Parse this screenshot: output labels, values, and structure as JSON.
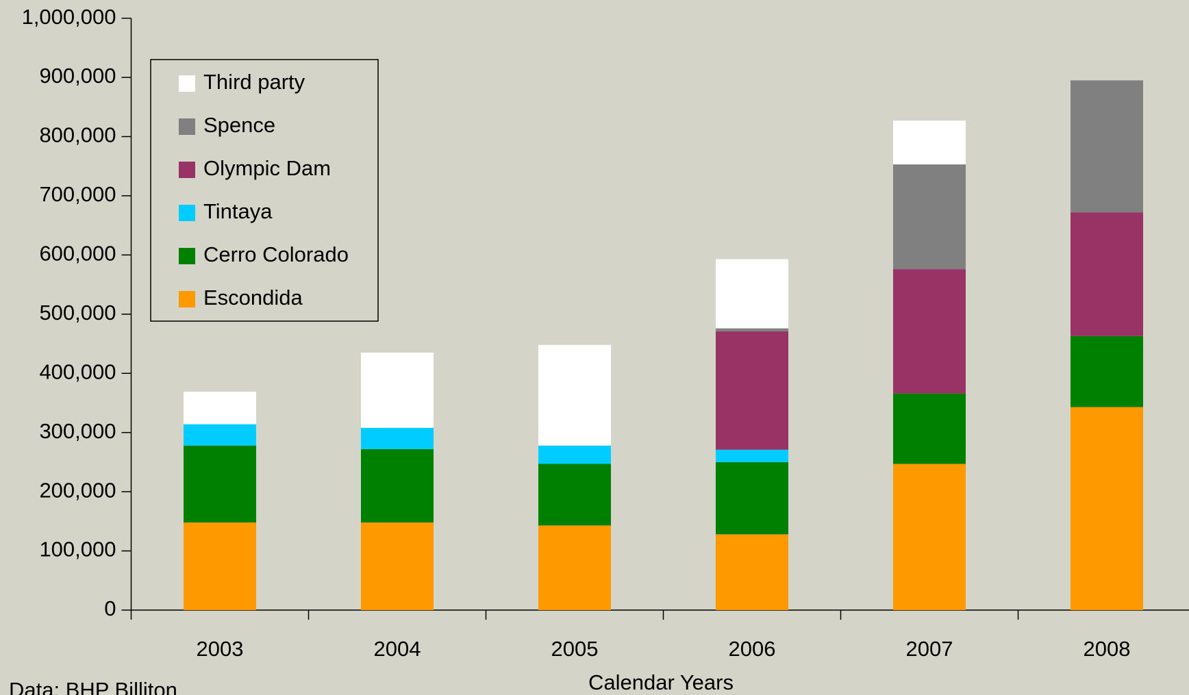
{
  "chart_data": {
    "type": "stacked_bar",
    "categories": [
      "2003",
      "2004",
      "2005",
      "2006",
      "2007",
      "2008"
    ],
    "series": [
      {
        "name": "Escondida",
        "color": "#ff9900",
        "values": [
          148000,
          148000,
          143000,
          128000,
          247000,
          343000
        ]
      },
      {
        "name": "Cerro Colorado",
        "color": "#008000",
        "values": [
          130000,
          124000,
          104000,
          122000,
          119000,
          120000
        ]
      },
      {
        "name": "Tintaya",
        "color": "#00ccff",
        "values": [
          36000,
          36000,
          31000,
          21000,
          0,
          0
        ]
      },
      {
        "name": "Olympic Dam",
        "color": "#993366",
        "values": [
          0,
          0,
          0,
          200000,
          210000,
          209000
        ]
      },
      {
        "name": "Spence",
        "color": "#808080",
        "values": [
          0,
          0,
          0,
          5000,
          177000,
          223000
        ]
      },
      {
        "name": "Third party",
        "color": "#ffffff",
        "values": [
          55000,
          127000,
          170000,
          117000,
          74000,
          0
        ]
      }
    ],
    "x_label": "Calendar Years",
    "source": "Data: BHP Billiton",
    "ylim": [
      0,
      1000000
    ],
    "yticks": [
      0,
      {
        "value": 100000,
        "label": "100,000"
      },
      {
        "value": 200000,
        "label": "200,000"
      },
      {
        "value": 300000,
        "label": "300,000"
      },
      {
        "value": 400000,
        "label": "400,000"
      },
      {
        "value": 500000,
        "label": "500,000"
      },
      {
        "value": 600000,
        "label": "600,000"
      },
      {
        "value": 700000,
        "label": "700,000"
      },
      {
        "value": 800000,
        "label": "800,000"
      },
      {
        "value": 900000,
        "label": "900,000"
      },
      {
        "value": 1000000,
        "label": "1,000,000"
      }
    ],
    "legend": "upper left"
  }
}
